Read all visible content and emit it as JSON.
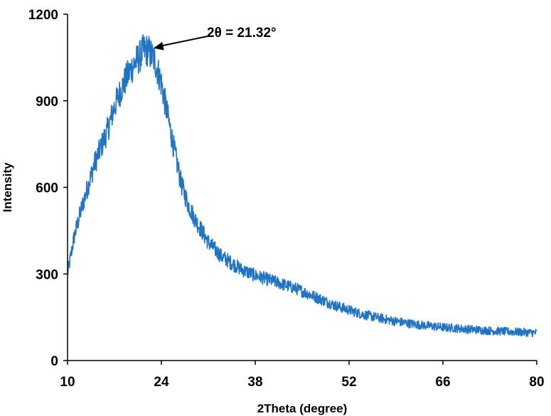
{
  "chart_data": {
    "type": "line",
    "title": "",
    "xlabel": "2Theta (degree)",
    "ylabel": "Intensity",
    "xlim": [
      10,
      80
    ],
    "ylim": [
      0,
      1200
    ],
    "x_ticks": [
      "10",
      "24",
      "38",
      "52",
      "66",
      "80"
    ],
    "y_ticks": [
      "0",
      "300",
      "600",
      "900",
      "1200"
    ],
    "grid": false,
    "legend": "none",
    "series": [
      {
        "color": "#1f74c4",
        "x": [
          10,
          11,
          12,
          13,
          14,
          15,
          16,
          17,
          18,
          19,
          20,
          21,
          21.32,
          22,
          23,
          24,
          25,
          26,
          27,
          28,
          29,
          30,
          31,
          32,
          33,
          34,
          35,
          36,
          37,
          38,
          40,
          42,
          44,
          46,
          48,
          50,
          52,
          54,
          56,
          58,
          60,
          62,
          64,
          66,
          68,
          70,
          72,
          74,
          76,
          78,
          80
        ],
        "y": [
          300,
          430,
          520,
          600,
          680,
          740,
          800,
          880,
          940,
          990,
          1030,
          1060,
          1075,
          1075,
          1040,
          960,
          840,
          720,
          610,
          540,
          490,
          450,
          410,
          385,
          360,
          345,
          330,
          315,
          305,
          295,
          280,
          265,
          250,
          230,
          210,
          190,
          175,
          160,
          150,
          140,
          132,
          125,
          120,
          115,
          112,
          108,
          105,
          102,
          100,
          98,
          96
        ]
      }
    ],
    "annotations": [
      {
        "text": "2θ = 21.32°",
        "x": 21.32,
        "y": 1075
      }
    ]
  }
}
